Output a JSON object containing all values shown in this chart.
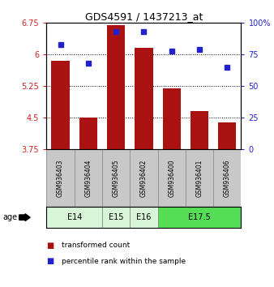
{
  "title": "GDS4591 / 1437213_at",
  "samples": [
    "GSM936403",
    "GSM936404",
    "GSM936405",
    "GSM936402",
    "GSM936400",
    "GSM936401",
    "GSM936406"
  ],
  "red_values": [
    5.85,
    4.5,
    6.7,
    6.15,
    5.2,
    4.65,
    4.38
  ],
  "blue_values": [
    83,
    68,
    93,
    93,
    78,
    79,
    65
  ],
  "ylim_left": [
    3.75,
    6.75
  ],
  "ylim_right": [
    0,
    100
  ],
  "yticks_left": [
    3.75,
    4.5,
    5.25,
    6.0,
    6.75
  ],
  "yticks_right": [
    0,
    25,
    50,
    75,
    100
  ],
  "ytick_labels_left": [
    "3.75",
    "4.5",
    "5.25",
    "6",
    "6.75"
  ],
  "ytick_labels_right": [
    "0",
    "25",
    "50",
    "75",
    "100%"
  ],
  "age_groups": [
    {
      "label": "E14",
      "start": 0,
      "end": 2,
      "color": "#d8f5d8"
    },
    {
      "label": "E15",
      "start": 2,
      "end": 3,
      "color": "#d8f5d8"
    },
    {
      "label": "E16",
      "start": 3,
      "end": 4,
      "color": "#d8f5d8"
    },
    {
      "label": "E17.5",
      "start": 4,
      "end": 7,
      "color": "#55dd55"
    }
  ],
  "bar_color": "#aa1111",
  "dot_color": "#2222cc",
  "bar_width": 0.65,
  "sample_bg_color": "#c8c8c8",
  "legend_red_label": "transformed count",
  "legend_blue_label": "percentile rank within the sample",
  "age_label": "age"
}
